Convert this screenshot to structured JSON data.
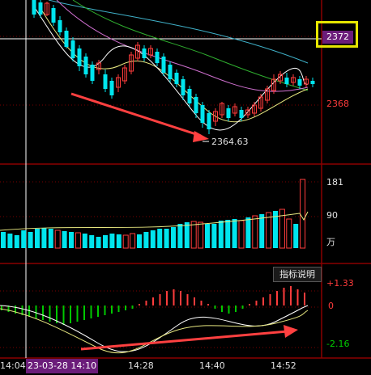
{
  "price_axis": {
    "current_price": "2372",
    "level_price": "2368",
    "low_annotation": "2364.63"
  },
  "volume_axis": {
    "max": "181",
    "mid": "90",
    "unit": "万"
  },
  "indicator": {
    "button_label": "指标说明",
    "max": "+1.33",
    "zero": "0",
    "min": "-2.16"
  },
  "time_axis": {
    "t0": "14:04",
    "cursor": "23-03-28 14:10",
    "t1": "14:28",
    "t2": "14:40",
    "t3": "14:52"
  },
  "colors": {
    "up": "#ff3c3c",
    "down": "#00e5ee",
    "macd_neg": "#00c800",
    "highlight_box": "#e6e600",
    "cursor_tag": "#6b1d7a"
  }
}
